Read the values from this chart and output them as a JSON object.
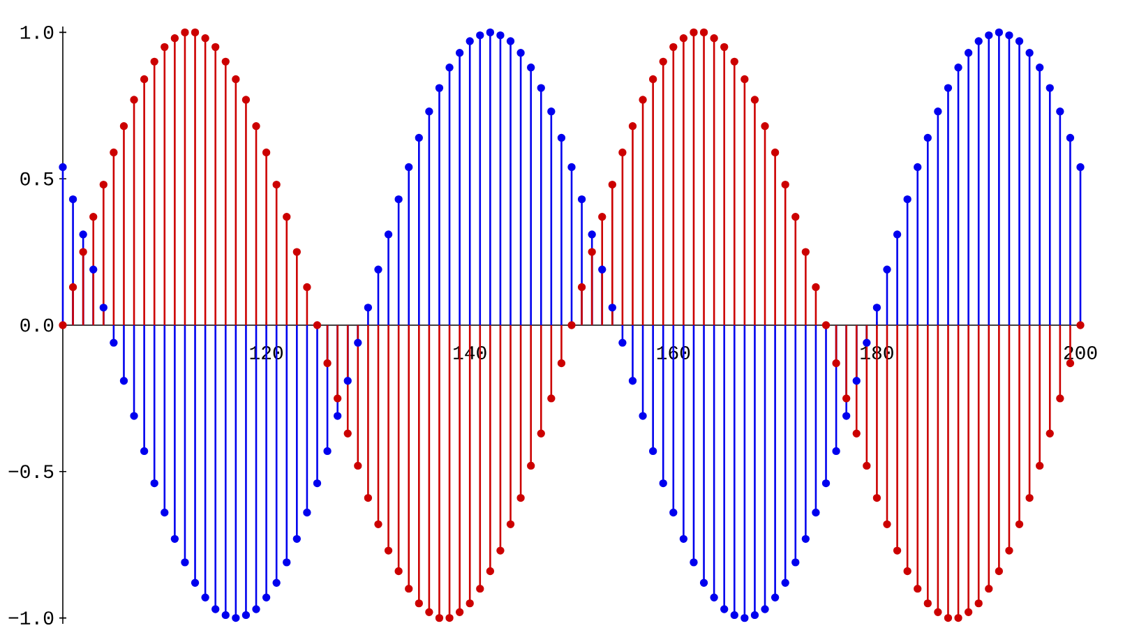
{
  "chart_data": {
    "type": "lollipop",
    "x": [
      100,
      101,
      102,
      103,
      104,
      105,
      106,
      107,
      108,
      109,
      110,
      111,
      112,
      113,
      114,
      115,
      116,
      117,
      118,
      119,
      120,
      121,
      122,
      123,
      124,
      125,
      126,
      127,
      128,
      129,
      130,
      131,
      132,
      133,
      134,
      135,
      136,
      137,
      138,
      139,
      140,
      141,
      142,
      143,
      144,
      145,
      146,
      147,
      148,
      149,
      150,
      151,
      152,
      153,
      154,
      155,
      156,
      157,
      158,
      159,
      160,
      161,
      162,
      163,
      164,
      165,
      166,
      167,
      168,
      169,
      170,
      171,
      172,
      173,
      174,
      175,
      176,
      177,
      178,
      179,
      180,
      181,
      182,
      183,
      184,
      185,
      186,
      187,
      188,
      189,
      190,
      191,
      192,
      193,
      194,
      195,
      196,
      197,
      198,
      199,
      200
    ],
    "series": [
      {
        "color": "#0000ee",
        "values": [
          0.54,
          0.43,
          0.31,
          0.19,
          0.06,
          -0.06,
          -0.19,
          -0.31,
          -0.43,
          -0.54,
          -0.64,
          -0.73,
          -0.81,
          -0.88,
          -0.93,
          -0.97,
          -0.99,
          -1.0,
          -0.99,
          -0.97,
          -0.93,
          -0.88,
          -0.81,
          -0.73,
          -0.64,
          -0.54,
          -0.43,
          -0.31,
          -0.19,
          -0.06,
          0.06,
          0.19,
          0.31,
          0.43,
          0.54,
          0.64,
          0.73,
          0.81,
          0.88,
          0.93,
          0.97,
          0.99,
          1.0,
          0.99,
          0.97,
          0.93,
          0.88,
          0.81,
          0.73,
          0.64,
          0.54,
          0.43,
          0.31,
          0.19,
          0.06,
          -0.06,
          -0.19,
          -0.31,
          -0.43,
          -0.54,
          -0.64,
          -0.73,
          -0.81,
          -0.88,
          -0.93,
          -0.97,
          -0.99,
          -1.0,
          -0.99,
          -0.97,
          -0.93,
          -0.88,
          -0.81,
          -0.73,
          -0.64,
          -0.54,
          -0.43,
          -0.31,
          -0.19,
          -0.06,
          0.06,
          0.19,
          0.31,
          0.43,
          0.54,
          0.64,
          0.73,
          0.81,
          0.88,
          0.93,
          0.97,
          0.99,
          1.0,
          0.99,
          0.97,
          0.93,
          0.88,
          0.81,
          0.73,
          0.64,
          0.54
        ]
      },
      {
        "color": "#cc0000",
        "values": [
          0,
          0.13,
          0.25,
          0.37,
          0.48,
          0.59,
          0.68,
          0.77,
          0.84,
          0.9,
          0.95,
          0.98,
          1.0,
          1.0,
          0.98,
          0.95,
          0.9,
          0.84,
          0.77,
          0.68,
          0.59,
          0.48,
          0.37,
          0.25,
          0.13,
          0,
          -0.13,
          -0.25,
          -0.37,
          -0.48,
          -0.59,
          -0.68,
          -0.77,
          -0.84,
          -0.9,
          -0.95,
          -0.98,
          -1.0,
          -1.0,
          -0.98,
          -0.95,
          -0.9,
          -0.84,
          -0.77,
          -0.68,
          -0.59,
          -0.48,
          -0.37,
          -0.25,
          -0.13,
          0,
          0.13,
          0.25,
          0.37,
          0.48,
          0.59,
          0.68,
          0.77,
          0.84,
          0.9,
          0.95,
          0.98,
          1.0,
          1.0,
          0.98,
          0.95,
          0.9,
          0.84,
          0.77,
          0.68,
          0.59,
          0.48,
          0.37,
          0.25,
          0.13,
          0,
          -0.13,
          -0.25,
          -0.37,
          -0.48,
          -0.59,
          -0.68,
          -0.77,
          -0.84,
          -0.9,
          -0.95,
          -0.98,
          -1.0,
          -1.0,
          -0.98,
          -0.95,
          -0.9,
          -0.84,
          -0.77,
          -0.68,
          -0.59,
          -0.48,
          -0.37,
          -0.25,
          -0.13,
          0
        ]
      }
    ],
    "marker": "circle",
    "xlim": [
      100,
      200
    ],
    "ylim": [
      -1.02,
      1.02
    ],
    "xticks": [
      120,
      140,
      160,
      180,
      200
    ],
    "yticks": [
      {
        "value": -1,
        "label": "−1.0"
      },
      {
        "value": -0.5,
        "label": "−0.5"
      },
      {
        "value": 0,
        "label": "0.0"
      },
      {
        "value": 0.5,
        "label": "0.5"
      },
      {
        "value": 1,
        "label": "1.0"
      }
    ]
  }
}
